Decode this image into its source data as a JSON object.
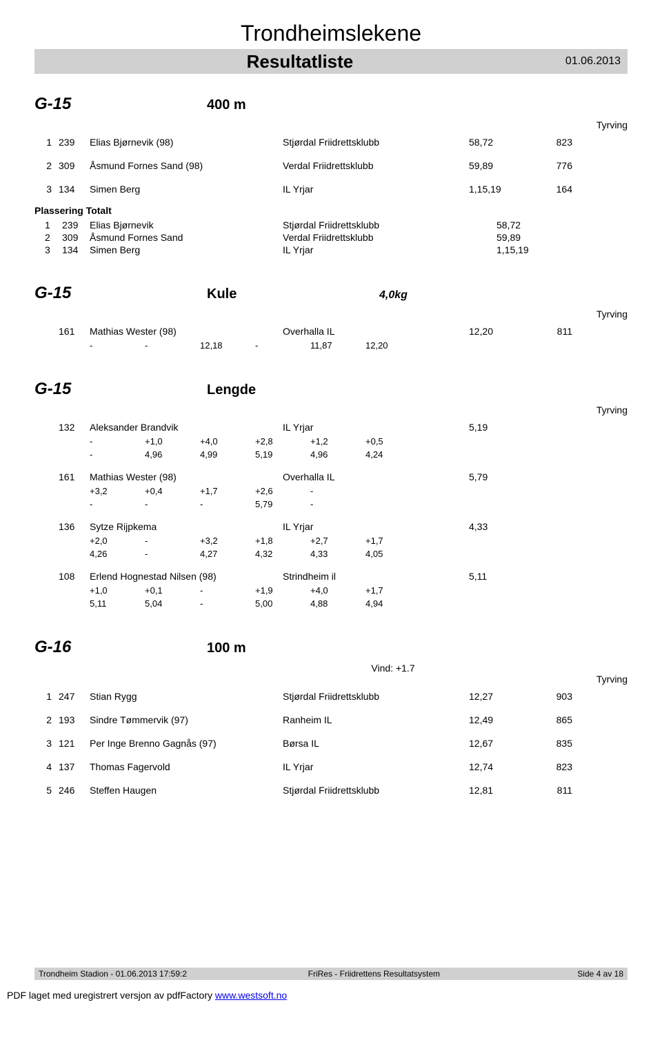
{
  "header": {
    "title": "Trondheimslekene",
    "subtitle": "Resultatliste",
    "date": "01.06.2013"
  },
  "labels": {
    "tyrving": "Tyrving",
    "placing_total": "Plassering Totalt",
    "wind_prefix": "Vind: "
  },
  "sections": [
    {
      "class": "G-15",
      "event": "400 m",
      "spec": "",
      "wind": "",
      "show_tyrving": true,
      "rows": [
        {
          "place": "1",
          "bib": "239",
          "name": "Elias Bjørnevik (98)",
          "club": "Stjørdal Friidrettsklubb",
          "res": "58,72",
          "pts": "823"
        },
        {
          "place": "2",
          "bib": "309",
          "name": "Åsmund Fornes Sand (98)",
          "club": "Verdal Friidrettsklubb",
          "res": "59,89",
          "pts": "776"
        },
        {
          "place": "3",
          "bib": "134",
          "name": "Simen Berg",
          "club": "IL Yrjar",
          "res": "1,15,19",
          "pts": "164"
        }
      ],
      "placing": [
        {
          "place": "1",
          "bib": "239",
          "name": "Elias Bjørnevik",
          "club": "Stjørdal Friidrettsklubb",
          "res": "58,72"
        },
        {
          "place": "2",
          "bib": "309",
          "name": "Åsmund Fornes Sand",
          "club": "Verdal Friidrettsklubb",
          "res": "59,89"
        },
        {
          "place": "3",
          "bib": "134",
          "name": "Simen Berg",
          "club": "IL Yrjar",
          "res": "1,15,19"
        }
      ]
    },
    {
      "class": "G-15",
      "event": "Kule",
      "spec": "4,0kg",
      "wind": "",
      "show_tyrving": true,
      "entries": [
        {
          "bib": "161",
          "name": "Mathias Wester (98)",
          "club": "Overhalla IL",
          "res": "12,20",
          "pts": "811",
          "attempts": [
            [
              "-",
              "-",
              "12,18",
              "-",
              "11,87",
              "12,20"
            ]
          ]
        }
      ]
    },
    {
      "class": "G-15",
      "event": "Lengde",
      "spec": "",
      "wind": "",
      "show_tyrving": true,
      "entries": [
        {
          "bib": "132",
          "name": "Aleksander Brandvik",
          "club": "IL Yrjar",
          "res": "5,19",
          "pts": "",
          "attempts": [
            [
              "-",
              "+1,0",
              "+4,0",
              "+2,8",
              "+1,2",
              "+0,5"
            ],
            [
              "-",
              "4,96",
              "4,99",
              "5,19",
              "4,96",
              "4,24"
            ]
          ]
        },
        {
          "bib": "161",
          "name": "Mathias Wester (98)",
          "club": "Overhalla IL",
          "res": "5,79",
          "pts": "",
          "attempts": [
            [
              "+3,2",
              "+0,4",
              "+1,7",
              "+2,6",
              "-",
              ""
            ],
            [
              "-",
              "-",
              "-",
              "5,79",
              "-",
              ""
            ]
          ]
        },
        {
          "bib": "136",
          "name": "Sytze Rijpkema",
          "club": "IL Yrjar",
          "res": "4,33",
          "pts": "",
          "attempts": [
            [
              "+2,0",
              "-",
              "+3,2",
              "+1,8",
              "+2,7",
              "+1,7"
            ],
            [
              "4,26",
              "-",
              "4,27",
              "4,32",
              "4,33",
              "4,05"
            ]
          ]
        },
        {
          "bib": "108",
          "name": "Erlend Hognestad Nilsen (98)",
          "club": "Strindheim il",
          "res": "5,11",
          "pts": "",
          "attempts": [
            [
              "+1,0",
              "+0,1",
              "-",
              "+1,9",
              "+4,0",
              "+1,7"
            ],
            [
              "5,11",
              "5,04",
              "-",
              "5,00",
              "4,88",
              "4,94"
            ]
          ]
        }
      ]
    },
    {
      "class": "G-16",
      "event": "100 m",
      "spec": "",
      "wind": "+1.7",
      "show_tyrving": true,
      "rows": [
        {
          "place": "1",
          "bib": "247",
          "name": "Stian Rygg",
          "club": "Stjørdal Friidrettsklubb",
          "res": "12,27",
          "pts": "903"
        },
        {
          "place": "2",
          "bib": "193",
          "name": "Sindre Tømmervik (97)",
          "club": "Ranheim IL",
          "res": "12,49",
          "pts": "865"
        },
        {
          "place": "3",
          "bib": "121",
          "name": "Per Inge Brenno Gagnås (97)",
          "club": "Børsa IL",
          "res": "12,67",
          "pts": "835"
        },
        {
          "place": "4",
          "bib": "137",
          "name": "Thomas Fagervold",
          "club": "IL Yrjar",
          "res": "12,74",
          "pts": "823"
        },
        {
          "place": "5",
          "bib": "246",
          "name": "Steffen Haugen",
          "club": "Stjørdal Friidrettsklubb",
          "res": "12,81",
          "pts": "811"
        }
      ]
    }
  ],
  "footer": {
    "left": "Trondheim Stadion - 01.06.2013 17:59:2",
    "mid": "FriRes - Friidrettens Resultatsystem",
    "right": "Side 4 av 18"
  },
  "pdf_note": {
    "text": "PDF laget med uregistrert versjon av pdfFactory ",
    "link_text": "www.westsoft.no"
  }
}
